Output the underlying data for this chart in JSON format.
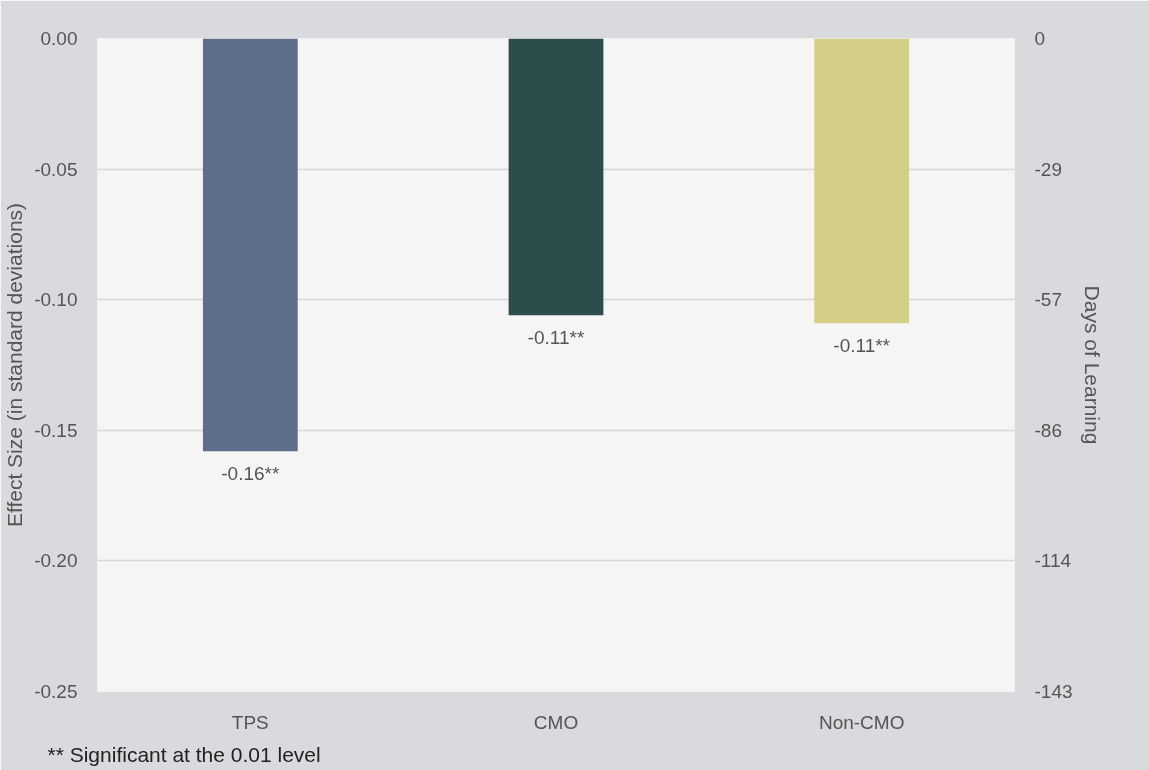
{
  "chart_data": {
    "type": "bar",
    "ylabel": "Effect Size (in standard deviations)",
    "y2label": "Days of Learning",
    "categories": [
      "TPS",
      "CMO",
      "Non-CMO"
    ],
    "values": [
      -0.158,
      -0.106,
      -0.109
    ],
    "colors": [
      "#5e6d8c",
      "#2d4d4c",
      "#d4cf87"
    ],
    "value_labels": [
      "-0.16**",
      "-0.11**",
      "-0.11**"
    ],
    "ylim": [
      -0.25,
      0
    ],
    "yticks": [
      {
        "value": 0,
        "label": "0.00"
      },
      {
        "value": -0.05,
        "label": "-0.05"
      },
      {
        "value": -0.1,
        "label": "-0.10"
      },
      {
        "value": -0.15,
        "label": "-0.15"
      },
      {
        "value": -0.2,
        "label": "-0.20"
      },
      {
        "value": -0.25,
        "label": "-0.25"
      }
    ],
    "y2lim": [
      -143,
      0
    ],
    "y2ticks": [
      0,
      {
        "value": -28.6,
        "label": "-29"
      },
      {
        "value": -57.2,
        "label": "-57"
      },
      {
        "value": -85.8,
        "label": "-86"
      },
      {
        "value": -114.4,
        "label": "-114"
      },
      -143
    ],
    "grid": "y",
    "annotations": [
      "** Significant at the 0.01 level"
    ]
  }
}
